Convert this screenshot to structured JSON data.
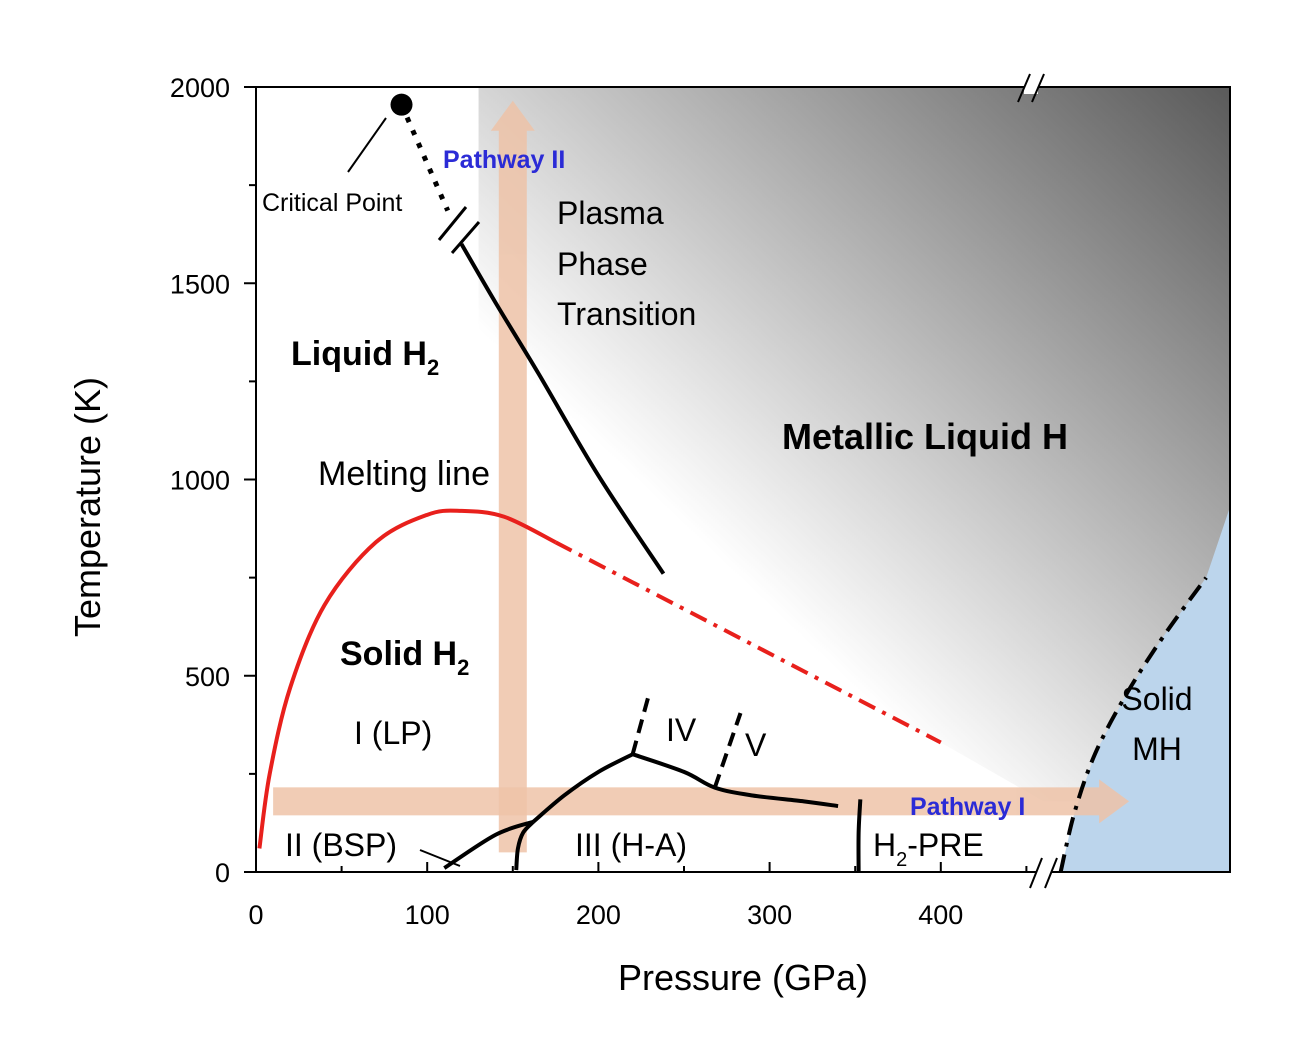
{
  "chart_data": {
    "type": "phase-diagram",
    "title": "",
    "xlabel": "Pressure (GPa)",
    "ylabel": "Temperature (K)",
    "xlim": [
      0,
      570
    ],
    "ylim": [
      0,
      2000
    ],
    "x_ticks": [
      0,
      100,
      200,
      300,
      400
    ],
    "x_tick_labels": [
      "0",
      "100",
      "200",
      "300",
      "400"
    ],
    "y_ticks": [
      0,
      500,
      1000,
      1500,
      2000
    ],
    "y_tick_labels": [
      "0",
      "500",
      "1000",
      "1500",
      "2000"
    ],
    "axis_break_pressure": 460,
    "colors": {
      "melting": "#e8201c",
      "boundary": "#000000",
      "arrow": "#eec3a8",
      "solid_mh": "#bcd5ec",
      "pathway": "#2b2bd6",
      "gradient_dark": "#5a5a5a"
    },
    "critical_point": {
      "x": 85,
      "y": 1955,
      "label": "Critical Point"
    },
    "series": [
      {
        "name": "Melting line",
        "style": "solid-red",
        "points": [
          [
            2,
            60
          ],
          [
            8,
            250
          ],
          [
            20,
            470
          ],
          [
            40,
            680
          ],
          [
            70,
            840
          ],
          [
            100,
            910
          ],
          [
            120,
            920
          ],
          [
            145,
            905
          ],
          [
            175,
            840
          ]
        ]
      },
      {
        "name": "Melting line extrapolated",
        "style": "dashdot-red",
        "points": [
          [
            175,
            840
          ],
          [
            400,
            330
          ]
        ]
      },
      {
        "name": "Plasma phase transition",
        "style": "solid-black",
        "points": [
          [
            120,
            1600
          ],
          [
            140,
            1450
          ],
          [
            165,
            1270
          ],
          [
            200,
            1010
          ],
          [
            238,
            760
          ]
        ]
      },
      {
        "name": "Critical point extension",
        "style": "dotted-black",
        "points": [
          [
            85,
            1955
          ],
          [
            112,
            1685
          ]
        ]
      },
      {
        "name": "II-III boundary",
        "style": "solid-black",
        "points": [
          [
            110,
            10
          ],
          [
            140,
            95
          ],
          [
            162,
            128
          ]
        ]
      },
      {
        "name": "I-III boundary",
        "style": "solid-black",
        "points": [
          [
            162,
            128
          ],
          [
            180,
            195
          ],
          [
            200,
            255
          ],
          [
            220,
            300
          ]
        ]
      },
      {
        "name": "III-IV boundary",
        "style": "solid-black",
        "points": [
          [
            220,
            300
          ],
          [
            250,
            255
          ],
          [
            268,
            215
          ],
          [
            290,
            195
          ],
          [
            320,
            180
          ],
          [
            340,
            168
          ]
        ]
      },
      {
        "name": "I-IV boundary",
        "style": "dashed-black",
        "points": [
          [
            220,
            300
          ],
          [
            230,
            460
          ]
        ]
      },
      {
        "name": "IV-V boundary",
        "style": "dashed-black",
        "points": [
          [
            268,
            215
          ],
          [
            283,
            405
          ]
        ]
      },
      {
        "name": "Phase II upper boundary",
        "style": "solid-black",
        "points": [
          [
            152,
            5
          ],
          [
            153,
            60
          ],
          [
            156,
            100
          ],
          [
            162,
            128
          ]
        ]
      },
      {
        "name": "H2-PRE boundary",
        "style": "solid-black",
        "points": [
          [
            352,
            0
          ],
          [
            352,
            100
          ],
          [
            353,
            185
          ]
        ]
      },
      {
        "name": "Solid MH boundary",
        "style": "dashdot-black",
        "points": [
          [
            470,
            0
          ],
          [
            478,
            150
          ],
          [
            490,
            300
          ],
          [
            508,
            450
          ],
          [
            530,
            600
          ],
          [
            555,
            750
          ]
        ]
      }
    ],
    "arrows": [
      {
        "name": "Pathway II",
        "from": [
          150,
          50
        ],
        "to": [
          150,
          1965
        ],
        "label": "Pathway II"
      },
      {
        "name": "Pathway I",
        "from": [
          10,
          180
        ],
        "to": [
          510,
          180
        ],
        "label": "Pathway I"
      }
    ],
    "regions": {
      "liquid_h2": {
        "text": "Liquid H",
        "sub": "2"
      },
      "solid_h2": {
        "text": "Solid H",
        "sub": "2"
      },
      "metallic_liquid": "Metallic Liquid H",
      "melting_label": "Melting line",
      "plasma_1": "Plasma",
      "plasma_2": "Phase",
      "plasma_3": "Transition",
      "phase_i": "I (LP)",
      "phase_ii": "II (BSP)",
      "phase_iii": "III (H-A)",
      "phase_iv": "IV",
      "phase_v": "V",
      "h2pre": {
        "pre": "H",
        "sub": "2",
        "post": "-PRE"
      },
      "solid_mh_1": "Solid",
      "solid_mh_2": "MH"
    }
  }
}
